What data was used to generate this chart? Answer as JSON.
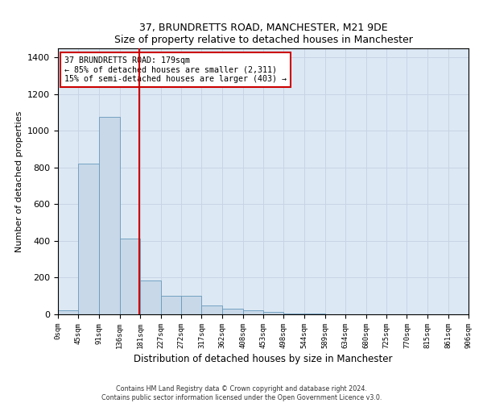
{
  "title": "37, BRUNDRETTS ROAD, MANCHESTER, M21 9DE",
  "subtitle": "Size of property relative to detached houses in Manchester",
  "xlabel": "Distribution of detached houses by size in Manchester",
  "ylabel": "Number of detached properties",
  "bar_color": "#c8d8e8",
  "bar_edge_color": "#6699bb",
  "grid_color": "#c8d4e4",
  "background_color": "#dce8f4",
  "annotation_box_color": "#cc0000",
  "vline_color": "#cc0000",
  "property_sqm": 179,
  "annotation_line1": "37 BRUNDRETTS ROAD: 179sqm",
  "annotation_line2": "← 85% of detached houses are smaller (2,311)",
  "annotation_line3": "15% of semi-detached houses are larger (403) →",
  "footnote1": "Contains HM Land Registry data © Crown copyright and database right 2024.",
  "footnote2": "Contains public sector information licensed under the Open Government Licence v3.0.",
  "bin_edges": [
    0,
    45,
    91,
    136,
    181,
    227,
    272,
    317,
    362,
    408,
    453,
    498,
    544,
    589,
    634,
    680,
    725,
    770,
    815,
    861,
    906
  ],
  "bin_labels": [
    "0sqm",
    "45sqm",
    "91sqm",
    "136sqm",
    "181sqm",
    "227sqm",
    "272sqm",
    "317sqm",
    "362sqm",
    "408sqm",
    "453sqm",
    "498sqm",
    "544sqm",
    "589sqm",
    "634sqm",
    "680sqm",
    "725sqm",
    "770sqm",
    "815sqm",
    "861sqm",
    "906sqm"
  ],
  "bar_heights": [
    22,
    820,
    1075,
    415,
    185,
    100,
    100,
    50,
    30,
    20,
    12,
    5,
    3,
    2,
    1,
    1,
    0,
    0,
    0,
    0
  ],
  "ylim": [
    0,
    1450
  ],
  "yticks": [
    0,
    200,
    400,
    600,
    800,
    1000,
    1200,
    1400
  ]
}
